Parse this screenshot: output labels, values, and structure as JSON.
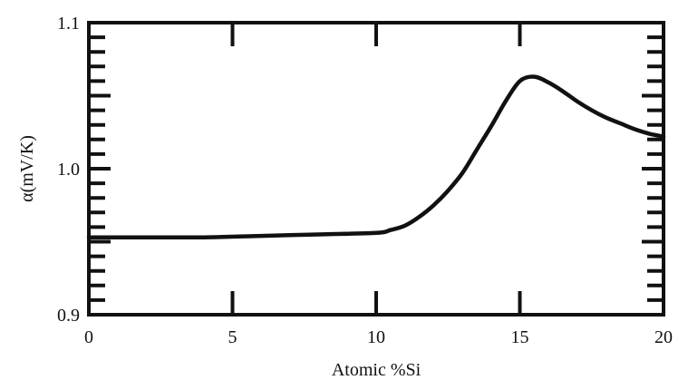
{
  "chart_data": {
    "type": "line",
    "xlabel": "Atomic %Si",
    "ylabel": "α(mV/K)",
    "xlim": [
      0,
      20
    ],
    "ylim": [
      0.9,
      1.1
    ],
    "x_ticks": [
      0,
      5,
      10,
      15,
      20
    ],
    "x_tick_labels": [
      "0",
      "5",
      "10",
      "15",
      "20"
    ],
    "y_ticks": [
      0.9,
      1.0,
      1.1
    ],
    "y_tick_labels": [
      "0.9",
      "1.0",
      "1.1"
    ],
    "grid": false,
    "series": [
      {
        "x": [
          0,
          2,
          4,
          6,
          8,
          10,
          10.5,
          11,
          11.5,
          12,
          12.5,
          13,
          13.5,
          14,
          14.5,
          15,
          15.5,
          16,
          16.5,
          17,
          17.5,
          18,
          18.5,
          19,
          19.5,
          20
        ],
        "y": [
          0.953,
          0.953,
          0.953,
          0.954,
          0.955,
          0.956,
          0.958,
          0.961,
          0.967,
          0.975,
          0.985,
          0.997,
          1.013,
          1.029,
          1.046,
          1.06,
          1.063,
          1.059,
          1.053,
          1.046,
          1.04,
          1.035,
          1.031,
          1.027,
          1.024,
          1.022
        ]
      }
    ]
  }
}
